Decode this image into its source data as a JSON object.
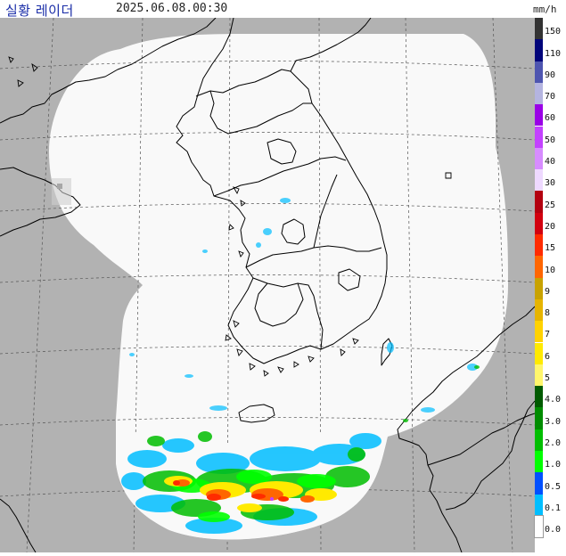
{
  "header": {
    "title": "실황 레이더",
    "timestamp": "2025.06.08.00:30",
    "unit": "mm/h"
  },
  "colors": {
    "land_outside": "#b2b2b2",
    "coverage": "#f9f9f9",
    "coastline": "#000000",
    "grid": "#555555",
    "title_text": "#1b2ea8"
  },
  "legend": {
    "items": [
      {
        "label": "150",
        "color": "#333333"
      },
      {
        "label": "110",
        "color": "#00047a"
      },
      {
        "label": "90",
        "color": "#4e55b0"
      },
      {
        "label": "70",
        "color": "#b4b4e0"
      },
      {
        "label": "60",
        "color": "#9a00e6"
      },
      {
        "label": "50",
        "color": "#c341ff"
      },
      {
        "label": "40",
        "color": "#d78cff"
      },
      {
        "label": "30",
        "color": "#eed9ff"
      },
      {
        "label": "25",
        "color": "#b3000f"
      },
      {
        "label": "20",
        "color": "#d2000f"
      },
      {
        "label": "15",
        "color": "#ff2b00"
      },
      {
        "label": "10",
        "color": "#ff6600"
      },
      {
        "label": "9",
        "color": "#c8a200"
      },
      {
        "label": "8",
        "color": "#e6b400"
      },
      {
        "label": "7",
        "color": "#ffd200"
      },
      {
        "label": "6",
        "color": "#ffea00"
      },
      {
        "label": "5",
        "color": "#fff66b"
      },
      {
        "label": "4.0",
        "color": "#005a00"
      },
      {
        "label": "3.0",
        "color": "#008c00"
      },
      {
        "label": "2.0",
        "color": "#00be00"
      },
      {
        "label": "1.0",
        "color": "#00ff00"
      },
      {
        "label": "0.5",
        "color": "#0050ff"
      },
      {
        "label": "0.1",
        "color": "#00beff"
      },
      {
        "label": "0.0",
        "color": "#ffffff"
      }
    ]
  }
}
